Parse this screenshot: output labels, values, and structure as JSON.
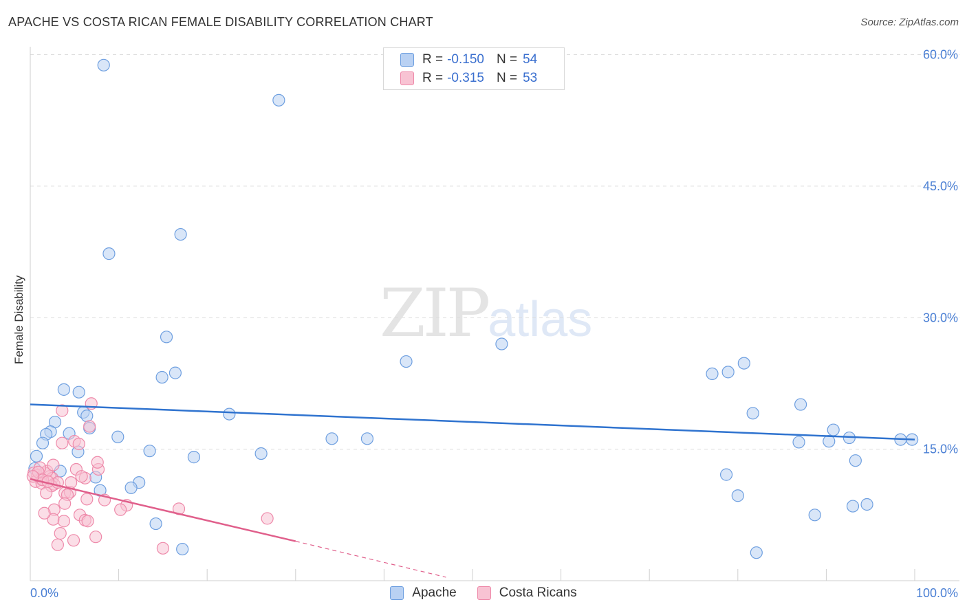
{
  "title": "APACHE VS COSTA RICAN FEMALE DISABILITY CORRELATION CHART",
  "source": "Source: ZipAtlas.com",
  "watermark": {
    "zip": "ZIP",
    "atlas": "atlas"
  },
  "legend": {
    "r_label": "R =",
    "n_label": "N =",
    "rows": [
      {
        "series": "Apache",
        "r": "-0.150",
        "n": "54",
        "fill": "#b9d1f3",
        "stroke": "#6e9fe0"
      },
      {
        "series": "Costa Ricans",
        "r": "-0.315",
        "n": "53",
        "fill": "#f8c3d3",
        "stroke": "#ee8aaa"
      }
    ]
  },
  "bottom_legend": [
    "Apache",
    "Costa Ricans"
  ],
  "chart_data": {
    "type": "scatter",
    "title": "APACHE VS COSTA RICAN FEMALE DISABILITY CORRELATION CHART",
    "xlabel": "",
    "ylabel": "Female Disability",
    "xlim": [
      0,
      100
    ],
    "ylim": [
      0,
      63
    ],
    "x_tick_labels": [
      {
        "value": 0,
        "label": "0.0%"
      },
      {
        "value": 100,
        "label": "100.0%"
      }
    ],
    "y_ticks": [
      {
        "value": 15,
        "label": "15.0%"
      },
      {
        "value": 30,
        "label": "30.0%"
      },
      {
        "value": 45,
        "label": "45.0%"
      },
      {
        "value": 60,
        "label": "60.0%"
      }
    ],
    "series": [
      {
        "name": "Apache",
        "color": "#6e9fe0",
        "fill": "#b9d1f3",
        "trend": {
          "x0": 0,
          "y0": 20.1,
          "x1": 100,
          "y1": 16.1,
          "color": "#2f73cf"
        },
        "points": [
          [
            8.3,
            58.8
          ],
          [
            28.1,
            54.8
          ],
          [
            17.0,
            39.5
          ],
          [
            8.9,
            37.3
          ],
          [
            15.4,
            27.8
          ],
          [
            42.5,
            25.0
          ],
          [
            16.4,
            23.7
          ],
          [
            14.9,
            23.2
          ],
          [
            53.3,
            27.0
          ],
          [
            3.8,
            21.8
          ],
          [
            5.5,
            21.5
          ],
          [
            6.0,
            19.2
          ],
          [
            6.4,
            18.8
          ],
          [
            2.8,
            18.1
          ],
          [
            6.7,
            17.4
          ],
          [
            2.3,
            17.0
          ],
          [
            1.8,
            16.7
          ],
          [
            9.9,
            16.4
          ],
          [
            22.5,
            19.0
          ],
          [
            1.4,
            15.7
          ],
          [
            4.4,
            16.8
          ],
          [
            5.4,
            14.7
          ],
          [
            13.5,
            14.8
          ],
          [
            18.5,
            14.1
          ],
          [
            26.1,
            14.5
          ],
          [
            34.1,
            16.2
          ],
          [
            38.1,
            16.2
          ],
          [
            0.7,
            14.2
          ],
          [
            0.5,
            12.8
          ],
          [
            3.4,
            12.5
          ],
          [
            7.4,
            11.8
          ],
          [
            12.3,
            11.2
          ],
          [
            11.4,
            10.6
          ],
          [
            7.9,
            10.3
          ],
          [
            14.2,
            6.5
          ],
          [
            17.2,
            3.6
          ],
          [
            77.1,
            23.6
          ],
          [
            78.9,
            23.8
          ],
          [
            80.7,
            24.8
          ],
          [
            81.7,
            19.1
          ],
          [
            87.1,
            20.1
          ],
          [
            86.9,
            15.8
          ],
          [
            90.3,
            15.9
          ],
          [
            90.8,
            17.2
          ],
          [
            92.6,
            16.3
          ],
          [
            93.3,
            13.7
          ],
          [
            78.7,
            12.1
          ],
          [
            80.0,
            9.7
          ],
          [
            88.7,
            7.5
          ],
          [
            93.0,
            8.5
          ],
          [
            94.6,
            8.7
          ],
          [
            98.4,
            16.1
          ],
          [
            99.7,
            16.1
          ],
          [
            82.1,
            3.2
          ]
        ]
      },
      {
        "name": "Costa Ricans",
        "color": "#ee8aaa",
        "fill": "#f8c3d3",
        "trend": {
          "x0": 0,
          "y0": 11.6,
          "x1": 30,
          "y1": 4.5,
          "x2": 47,
          "y2": 0.4,
          "color": "#e05f8b"
        },
        "points": [
          [
            6.9,
            20.2
          ],
          [
            3.6,
            19.4
          ],
          [
            6.7,
            17.6
          ],
          [
            5.0,
            15.9
          ],
          [
            3.6,
            15.7
          ],
          [
            5.5,
            15.6
          ],
          [
            0.4,
            12.3
          ],
          [
            0.8,
            12.0
          ],
          [
            1.2,
            11.6
          ],
          [
            1.6,
            12.3
          ],
          [
            2.2,
            11.9
          ],
          [
            0.6,
            11.3
          ],
          [
            1.3,
            11.1
          ],
          [
            2.5,
            11.7
          ],
          [
            1.9,
            12.5
          ],
          [
            1.1,
            12.9
          ],
          [
            2.7,
            11.0
          ],
          [
            2.4,
            10.8
          ],
          [
            3.1,
            11.2
          ],
          [
            2.6,
            13.2
          ],
          [
            5.2,
            12.7
          ],
          [
            7.7,
            12.7
          ],
          [
            7.6,
            13.5
          ],
          [
            6.2,
            11.7
          ],
          [
            3.9,
            10.0
          ],
          [
            4.5,
            10.1
          ],
          [
            1.8,
            10.0
          ],
          [
            4.2,
            9.8
          ],
          [
            6.4,
            9.3
          ],
          [
            8.4,
            9.2
          ],
          [
            3.9,
            8.8
          ],
          [
            10.9,
            8.6
          ],
          [
            2.7,
            8.1
          ],
          [
            10.2,
            8.1
          ],
          [
            16.8,
            8.2
          ],
          [
            5.6,
            7.5
          ],
          [
            2.6,
            7.0
          ],
          [
            6.2,
            6.9
          ],
          [
            6.5,
            6.8
          ],
          [
            3.8,
            6.8
          ],
          [
            1.6,
            7.7
          ],
          [
            26.8,
            7.1
          ],
          [
            3.4,
            5.4
          ],
          [
            7.4,
            5.0
          ],
          [
            4.9,
            4.6
          ],
          [
            3.1,
            4.1
          ],
          [
            15.0,
            3.7
          ],
          [
            0.9,
            12.4
          ],
          [
            1.4,
            11.5
          ],
          [
            0.3,
            11.9
          ],
          [
            2.0,
            11.3
          ],
          [
            4.6,
            11.2
          ],
          [
            5.8,
            11.9
          ]
        ]
      }
    ]
  }
}
